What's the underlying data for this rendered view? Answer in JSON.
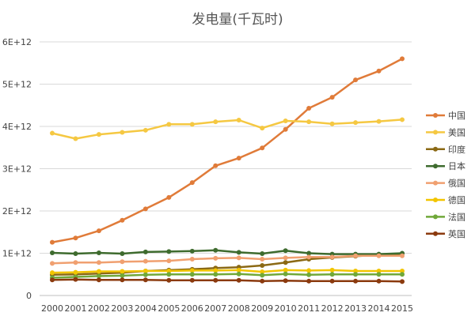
{
  "chart_data": {
    "type": "line",
    "title": "发电量(千瓦时)",
    "xlabel": "",
    "ylabel": "",
    "ylim": [
      0,
      6000000000000.0
    ],
    "yticks": [
      {
        "value": 0,
        "label": "0"
      },
      {
        "value": 1000000000000.0,
        "label": "1E+12"
      },
      {
        "value": 2000000000000.0,
        "label": "2E+12"
      },
      {
        "value": 3000000000000.0,
        "label": "3E+12"
      },
      {
        "value": 4000000000000.0,
        "label": "4E+12"
      },
      {
        "value": 5000000000000.0,
        "label": "5E+12"
      },
      {
        "value": 6000000000000.0,
        "label": "6E+12"
      }
    ],
    "grid": true,
    "legend_position": "right",
    "categories": [
      "2000",
      "2001",
      "2002",
      "2003",
      "2004",
      "2005",
      "2006",
      "2007",
      "2008",
      "2009",
      "2010",
      "2011",
      "2012",
      "2013",
      "2014",
      "2015"
    ],
    "series": [
      {
        "name": "中国",
        "color": "#E07B39",
        "values": [
          1260000000000.0,
          1360000000000.0,
          1530000000000.0,
          1780000000000.0,
          2050000000000.0,
          2320000000000.0,
          2670000000000.0,
          3070000000000.0,
          3250000000000.0,
          3490000000000.0,
          3930000000000.0,
          4430000000000.0,
          4690000000000.0,
          5100000000000.0,
          5310000000000.0,
          5600000000000.0
        ]
      },
      {
        "name": "美国",
        "color": "#F5C842",
        "values": [
          3840000000000.0,
          3710000000000.0,
          3810000000000.0,
          3860000000000.0,
          3910000000000.0,
          4050000000000.0,
          4050000000000.0,
          4110000000000.0,
          4150000000000.0,
          3960000000000.0,
          4130000000000.0,
          4110000000000.0,
          4060000000000.0,
          4090000000000.0,
          4120000000000.0,
          4160000000000.0
        ]
      },
      {
        "name": "印度",
        "color": "#8B6914",
        "values": [
          490000000000.0,
          500000000000.0,
          520000000000.0,
          540000000000.0,
          580000000000.0,
          600000000000.0,
          620000000000.0,
          650000000000.0,
          670000000000.0,
          710000000000.0,
          780000000000.0,
          860000000000.0,
          900000000000.0,
          930000000000.0,
          960000000000.0,
          990000000000.0
        ]
      },
      {
        "name": "日本",
        "color": "#3E6B2E",
        "values": [
          1010000000000.0,
          990000000000.0,
          1010000000000.0,
          990000000000.0,
          1030000000000.0,
          1040000000000.0,
          1050000000000.0,
          1070000000000.0,
          1020000000000.0,
          990000000000.0,
          1060000000000.0,
          1000000000000.0,
          980000000000.0,
          980000000000.0,
          980000000000.0,
          1000000000000.0
        ]
      },
      {
        "name": "俄国",
        "color": "#F0A070",
        "values": [
          760000000000.0,
          780000000000.0,
          780000000000.0,
          800000000000.0,
          810000000000.0,
          820000000000.0,
          860000000000.0,
          880000000000.0,
          890000000000.0,
          860000000000.0,
          890000000000.0,
          910000000000.0,
          910000000000.0,
          940000000000.0,
          940000000000.0,
          940000000000.0
        ]
      },
      {
        "name": "德国",
        "color": "#F2C500",
        "values": [
          540000000000.0,
          550000000000.0,
          570000000000.0,
          570000000000.0,
          580000000000.0,
          580000000000.0,
          590000000000.0,
          590000000000.0,
          600000000000.0,
          560000000000.0,
          600000000000.0,
          590000000000.0,
          600000000000.0,
          580000000000.0,
          580000000000.0,
          580000000000.0
        ]
      },
      {
        "name": "法国",
        "color": "#70A83A",
        "values": [
          420000000000.0,
          440000000000.0,
          460000000000.0,
          470000000000.0,
          490000000000.0,
          500000000000.0,
          500000000000.0,
          500000000000.0,
          510000000000.0,
          480000000000.0,
          510000000000.0,
          490000000000.0,
          500000000000.0,
          500000000000.0,
          500000000000.0,
          500000000000.0
        ]
      },
      {
        "name": "英国",
        "color": "#8B3A0E",
        "values": [
          370000000000.0,
          380000000000.0,
          370000000000.0,
          370000000000.0,
          370000000000.0,
          360000000000.0,
          360000000000.0,
          360000000000.0,
          360000000000.0,
          340000000000.0,
          350000000000.0,
          340000000000.0,
          340000000000.0,
          340000000000.0,
          340000000000.0,
          330000000000.0
        ]
      }
    ]
  }
}
